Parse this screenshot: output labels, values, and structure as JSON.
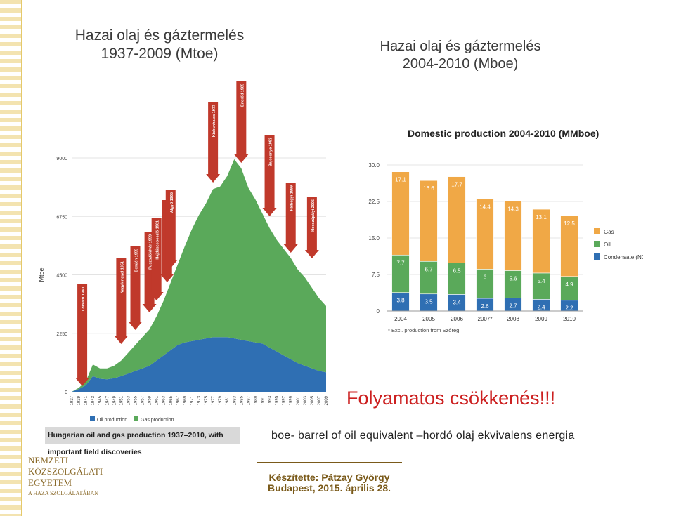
{
  "slide": {
    "title_left_line1": "Hazai olaj és gáztermelés",
    "title_left_line2": "1937-2009 (Mtoe)",
    "title_right_line1": "Hazai olaj és gáztermelés",
    "title_right_line2": "2004-2010 (Mboe)",
    "slogan": "Folyamatos csökkenés!!!",
    "boe_note": "boe- barrel of oil equivalent –hordó olaj ekvivalens energia",
    "author_line1": "Készítette: Pátzay György",
    "author_line2": "Budapest, 2015. április 28.",
    "university": [
      "NEMZETI",
      "KÖZSZOLGÁLATI",
      "EGYETEM",
      "A HAZA SZOLGÁLATÁBAN"
    ]
  },
  "chart_data": [
    {
      "type": "area",
      "title": "Hungarian oil and gas production 1937–2010, with important field discoveries",
      "ylabel": "Mtoe",
      "ylim": [
        0,
        9000
      ],
      "yticks": [
        0,
        2250,
        4500,
        6750,
        9000
      ],
      "x": [
        1937,
        1939,
        1941,
        1943,
        1945,
        1947,
        1949,
        1951,
        1953,
        1955,
        1957,
        1959,
        1961,
        1963,
        1965,
        1967,
        1969,
        1971,
        1973,
        1975,
        1977,
        1979,
        1981,
        1983,
        1985,
        1987,
        1989,
        1991,
        1993,
        1995,
        1997,
        1999,
        2001,
        2003,
        2005,
        2007,
        2009
      ],
      "xtick_labels": [
        "1937",
        "1939",
        "1941",
        "1943",
        "1945",
        "1947",
        "1949",
        "1951",
        "1953",
        "1955",
        "1957",
        "1959",
        "1961",
        "1963",
        "1965",
        "1967",
        "1969",
        "1971",
        "1973",
        "1975",
        "1977",
        "1979",
        "1981",
        "1983",
        "1985",
        "1987",
        "1989",
        "1991",
        "1993",
        "1995",
        "1997",
        "1999",
        "2001",
        "2003",
        "2005",
        "2007",
        "2009"
      ],
      "series": [
        {
          "name": "Oil production",
          "color": "#2f6fb3",
          "values": [
            0,
            100,
            250,
            600,
            500,
            480,
            520,
            600,
            700,
            800,
            900,
            1000,
            1200,
            1400,
            1600,
            1800,
            1900,
            1950,
            2000,
            2050,
            2100,
            2100,
            2100,
            2050,
            2000,
            1950,
            1900,
            1850,
            1700,
            1550,
            1400,
            1250,
            1100,
            1000,
            900,
            800,
            750
          ]
        },
        {
          "name": "Gas production",
          "color": "#5aa95a",
          "values": [
            0,
            50,
            150,
            450,
            400,
            420,
            480,
            600,
            800,
            1000,
            1200,
            1400,
            1700,
            2100,
            2600,
            3100,
            3700,
            4300,
            4800,
            5200,
            5700,
            5800,
            6200,
            6900,
            6600,
            5900,
            5500,
            5000,
            4600,
            4300,
            4100,
            3900,
            3600,
            3400,
            3100,
            2800,
            2550
          ]
        }
      ],
      "annotations": [
        "Lovászi 1940",
        "Nagylengyel 1951",
        "Demjén 1955",
        "Pusztaföldvár 1959",
        "Hajdúszoboszló 1961",
        "Szank 1964",
        "Algyő 1965",
        "Kiskunhalas 1977",
        "Endrőd 1985",
        "Bajcsonye 1993",
        "Pálhegyi 1999",
        "Hosszúpályi 2005"
      ]
    },
    {
      "type": "bar",
      "title": "Domestic production 2004-2010 (MMboe)",
      "categories": [
        "2004",
        "2005",
        "2006",
        "2007*",
        "2008",
        "2009",
        "2010"
      ],
      "ylim": [
        0,
        30
      ],
      "yticks": [
        "0",
        "7.5",
        "15.0",
        "22.5",
        "30.0"
      ],
      "series": [
        {
          "name": "Condensate (NGL)",
          "color": "#2f6fb3",
          "values": [
            3.8,
            3.5,
            3.4,
            2.6,
            2.7,
            2.4,
            2.2
          ]
        },
        {
          "name": "Oil",
          "color": "#5aa95a",
          "values": [
            7.7,
            6.7,
            6.5,
            6.0,
            5.6,
            5.4,
            4.9
          ]
        },
        {
          "name": "Gas",
          "color": "#f0a846",
          "values": [
            17.1,
            16.6,
            17.7,
            14.4,
            14.3,
            13.1,
            12.5
          ]
        }
      ],
      "legend": "right",
      "footnote": "* Excl. production from Szőreg"
    }
  ]
}
